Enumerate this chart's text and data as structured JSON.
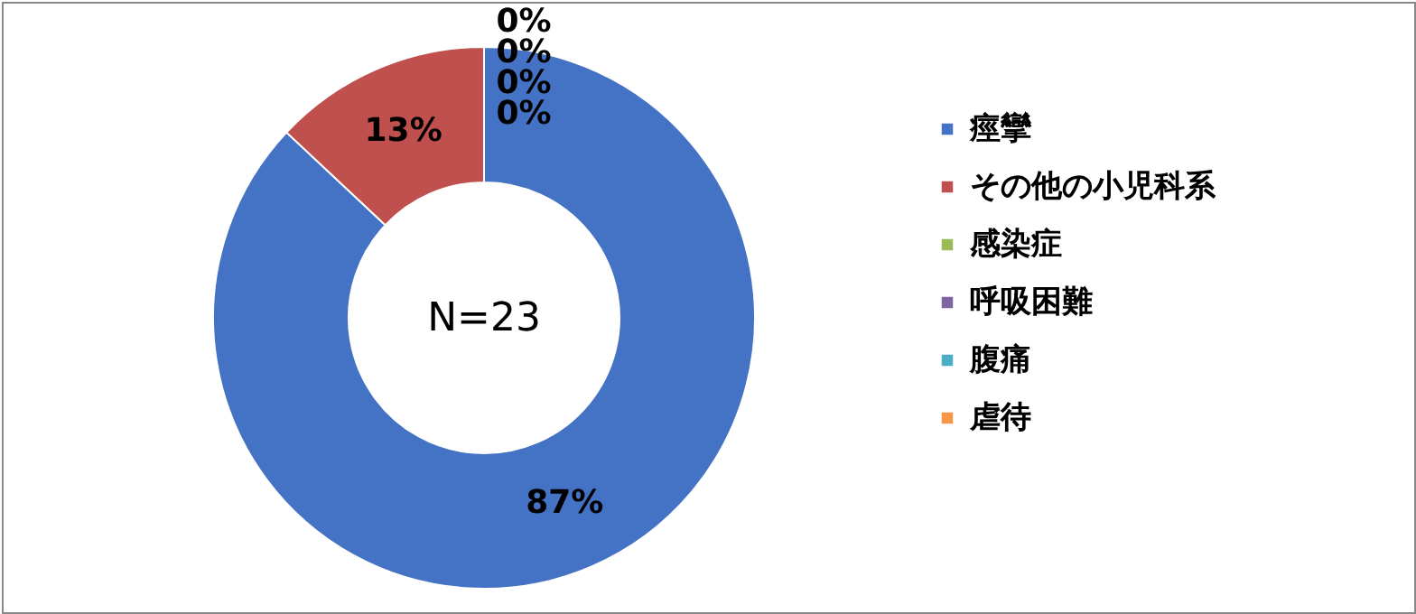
{
  "chart_data": {
    "type": "donut",
    "categories": [
      "痙攣",
      "その他の小児科系",
      "感染症",
      "呼吸困難",
      "腹痛",
      "虐待"
    ],
    "values": [
      87,
      13,
      0,
      0,
      0,
      0
    ],
    "colors": [
      "#4472c4",
      "#c0504d",
      "#9bbb59",
      "#8064a2",
      "#4bacc6",
      "#f79646"
    ],
    "value_labels": [
      "87%",
      "13%",
      "0%",
      "0%",
      "0%",
      "0%"
    ],
    "annotations": [
      "N=23"
    ],
    "legend": "right"
  }
}
